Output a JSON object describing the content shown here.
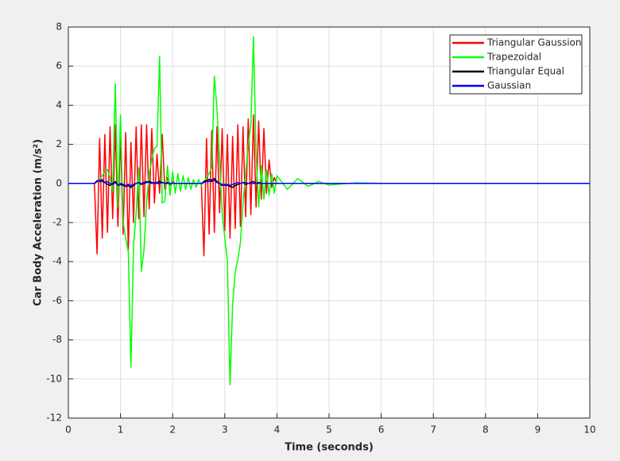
{
  "chart_data": {
    "type": "line",
    "x_label": "Time (seconds)",
    "y_label": "Car Body Acceleration (m/s²)",
    "xlim": [
      0,
      10
    ],
    "ylim": [
      -12,
      8
    ],
    "xticks": [
      0,
      1,
      2,
      3,
      4,
      5,
      6,
      7,
      8,
      9,
      10
    ],
    "yticks": [
      -12,
      -10,
      -8,
      -6,
      -4,
      -2,
      0,
      2,
      4,
      6,
      8
    ],
    "grid": true,
    "legend": "northeast",
    "x": [
      0,
      0.5,
      0.55,
      0.6,
      0.65,
      0.7,
      0.75,
      0.8,
      0.85,
      0.9,
      0.95,
      1.0,
      1.05,
      1.1,
      1.15,
      1.2,
      1.25,
      1.3,
      1.35,
      1.4,
      1.45,
      1.5,
      1.55,
      1.6,
      1.65,
      1.7,
      1.75,
      1.8,
      1.85,
      1.9,
      1.95,
      2.0,
      2.05,
      2.1,
      2.15,
      2.2,
      2.25,
      2.3,
      2.35,
      2.4,
      2.45,
      2.5,
      2.55,
      2.6,
      2.65,
      2.7,
      2.75,
      2.8,
      2.85,
      2.9,
      2.95,
      3.0,
      3.05,
      3.1,
      3.15,
      3.2,
      3.25,
      3.3,
      3.35,
      3.4,
      3.45,
      3.5,
      3.55,
      3.6,
      3.65,
      3.7,
      3.75,
      3.8,
      3.85,
      3.9,
      3.95,
      4.0,
      4.2,
      4.4,
      4.6,
      4.8,
      5,
      5.5,
      6,
      10
    ],
    "series": [
      {
        "name": "Triangular Gaussion",
        "color": "#ff0000",
        "values": [
          0,
          0,
          -3.6,
          2.3,
          -2.8,
          2.5,
          -2.5,
          2.9,
          -1.8,
          3.0,
          -2.2,
          2.5,
          -2.6,
          2.6,
          -3.4,
          2.1,
          -2.0,
          2.9,
          -1.8,
          3.0,
          -1.7,
          3.0,
          -1.3,
          2.8,
          -1.0,
          1.5,
          -0.5,
          2.5,
          -0.3,
          0.3,
          -0.1,
          0.1,
          0,
          0,
          0,
          0,
          0,
          0,
          0,
          0,
          0,
          0,
          0,
          -3.7,
          2.3,
          -2.6,
          2.7,
          -2.5,
          2.9,
          -1.5,
          2.8,
          -2.4,
          2.5,
          -2.8,
          2.4,
          -2.3,
          3.0,
          -2.2,
          2.9,
          -1.7,
          3.3,
          -1.6,
          3.5,
          -1.2,
          3.2,
          -0.8,
          2.8,
          -0.5,
          1.2,
          -0.2,
          0.3,
          0,
          0,
          0,
          0,
          0,
          0,
          0,
          0,
          0
        ]
      },
      {
        "name": "Trapezoidal",
        "color": "#00ff00",
        "values": [
          0,
          0,
          0.1,
          0.2,
          0.4,
          0.6,
          0.7,
          0.3,
          -0.4,
          5.1,
          -1.2,
          3.5,
          -2.0,
          -2.8,
          -3.5,
          -9.4,
          -3.2,
          -1.5,
          0.8,
          -4.5,
          -3.4,
          -1.0,
          0.5,
          1.2,
          1.8,
          1.9,
          6.5,
          -1.0,
          -0.9,
          0.9,
          -0.6,
          0.6,
          -0.5,
          0.5,
          -0.4,
          0.4,
          -0.3,
          0.3,
          -0.3,
          0.2,
          -0.2,
          0.2,
          -0.1,
          0.1,
          0.3,
          0.5,
          0.8,
          5.5,
          3.8,
          1.2,
          -1.5,
          -2.8,
          -4.0,
          -10.3,
          -6.2,
          -4.5,
          -3.9,
          -3.0,
          -1.0,
          0.5,
          2.0,
          3.0,
          7.5,
          1.5,
          -1.2,
          0.9,
          -0.8,
          0.7,
          -0.6,
          0.5,
          -0.5,
          0.4,
          -0.3,
          0.25,
          -0.15,
          0.1,
          -0.08,
          0.03,
          0,
          0
        ]
      },
      {
        "name": "Triangular Equal",
        "color": "#000000",
        "values": [
          0,
          0,
          0.1,
          0.15,
          0.1,
          0.05,
          -0.05,
          -0.1,
          0,
          0.1,
          -0.1,
          -0.05,
          -0.1,
          -0.15,
          -0.05,
          -0.2,
          -0.1,
          0,
          0.05,
          -0.05,
          0,
          0.05,
          0.1,
          0.05,
          0,
          0.05,
          0.1,
          0.05,
          0,
          0.05,
          0,
          0,
          0,
          0,
          0,
          0,
          0,
          0,
          0,
          0,
          0,
          0,
          0,
          0.1,
          0.15,
          0.2,
          0.1,
          0.25,
          0.1,
          0,
          -0.1,
          -0.05,
          -0.1,
          -0.15,
          -0.2,
          -0.1,
          -0.05,
          0,
          0.05,
          -0.05,
          0,
          0.05,
          0.1,
          0,
          0.05,
          0,
          0,
          0,
          0,
          0,
          0,
          0,
          0,
          0,
          0,
          0,
          0,
          0,
          0,
          0
        ]
      },
      {
        "name": "Gaussian",
        "color": "#0000ff",
        "values": [
          0,
          0,
          0.15,
          0.1,
          0.2,
          0.05,
          0.1,
          0,
          -0.05,
          0.05,
          -0.1,
          0,
          -0.05,
          -0.1,
          -0.15,
          -0.1,
          -0.05,
          0,
          0.05,
          0,
          0.05,
          0.1,
          0.05,
          0,
          0.05,
          0,
          0,
          0.05,
          0,
          0,
          0,
          0,
          0,
          0,
          0,
          0,
          0,
          0,
          0,
          0,
          0,
          0,
          0,
          0.05,
          0.1,
          0.1,
          0.2,
          0.15,
          0.05,
          0,
          -0.05,
          -0.1,
          -0.05,
          -0.1,
          -0.05,
          0,
          0.05,
          0,
          0.05,
          0.05,
          0,
          0,
          0,
          0,
          0,
          0,
          0,
          0,
          0,
          0,
          0,
          0,
          0,
          0,
          0,
          0,
          0,
          0,
          0,
          0
        ]
      }
    ]
  }
}
